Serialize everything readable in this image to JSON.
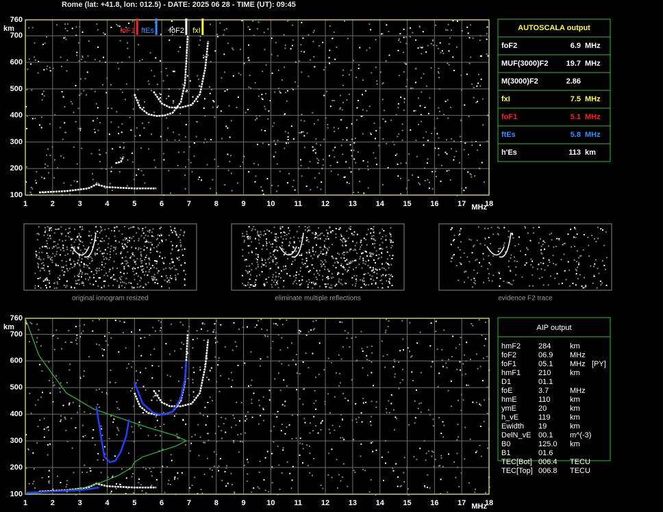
{
  "header": "Rome (lat: +41.8, lon: 012.5) - DATE: 2025 06 28 - TIME (UT): 09:45",
  "chart_data": [
    {
      "type": "line",
      "y_unit": "km",
      "x_unit": "MHz",
      "xlim": [
        1,
        18
      ],
      "ylim": [
        100,
        760
      ],
      "xticks": [
        1,
        2,
        3,
        4,
        5,
        6,
        7,
        8,
        9,
        10,
        11,
        12,
        13,
        14,
        15,
        16,
        17,
        18
      ],
      "yticks": [
        100,
        200,
        300,
        400,
        500,
        600,
        700,
        760
      ],
      "grid": true,
      "markers": [
        {
          "label": "foF1",
          "value": 5.1,
          "color": "#ff2020"
        },
        {
          "label": "ftEs",
          "value": 5.8,
          "color": "#3090ff"
        },
        {
          "label": "foF2",
          "value": 6.9,
          "color": "#ffffff"
        },
        {
          "label": "fxI",
          "value": 7.5,
          "color": "#ffff40"
        }
      ],
      "series": [
        {
          "color": "#ffffff",
          "x": [
            5.0,
            5.2,
            5.5,
            5.8,
            6.1,
            6.4,
            6.7,
            6.85,
            6.9,
            6.95
          ],
          "values": [
            480,
            430,
            405,
            398,
            400,
            410,
            450,
            520,
            600,
            700
          ]
        },
        {
          "color": "#ffffff",
          "x": [
            5.7,
            6.0,
            6.3,
            6.7,
            7.1,
            7.4,
            7.6,
            7.7
          ],
          "values": [
            490,
            445,
            430,
            430,
            440,
            480,
            580,
            680
          ]
        },
        {
          "color": "#ffffff",
          "x": [
            1.5,
            2.5,
            3.3,
            3.6,
            4.0,
            5.0,
            5.8
          ],
          "values": [
            110,
            115,
            125,
            140,
            130,
            125,
            125
          ]
        },
        {
          "color": "#ffffff",
          "x": [
            4.3,
            4.5,
            4.6
          ],
          "values": [
            220,
            225,
            245
          ]
        }
      ]
    },
    {
      "type": "line",
      "y_unit": "km",
      "x_unit": "MHz",
      "xlim": [
        1,
        18
      ],
      "ylim": [
        100,
        760
      ],
      "xticks": [
        1,
        2,
        3,
        4,
        5,
        6,
        7,
        8,
        9,
        10,
        11,
        12,
        13,
        14,
        15,
        16,
        17,
        18
      ],
      "yticks": [
        100,
        200,
        300,
        400,
        500,
        600,
        700,
        760
      ],
      "grid": true,
      "series": [
        {
          "color": "#ffffff",
          "x": [
            5.0,
            5.2,
            5.5,
            5.8,
            6.1,
            6.4,
            6.7,
            6.85,
            6.9,
            6.95
          ],
          "values": [
            480,
            430,
            405,
            398,
            400,
            410,
            450,
            520,
            600,
            700
          ]
        },
        {
          "color": "#ffffff",
          "x": [
            5.7,
            6.0,
            6.3,
            6.7,
            7.1,
            7.4,
            7.6,
            7.7
          ],
          "values": [
            490,
            445,
            430,
            430,
            440,
            480,
            580,
            680
          ]
        },
        {
          "color": "#ffffff",
          "x": [
            1.5,
            2.5,
            3.3,
            3.6,
            4.0,
            5.0,
            5.8
          ],
          "values": [
            110,
            115,
            125,
            140,
            130,
            125,
            125
          ]
        },
        {
          "color": "#30c030",
          "x": [
            1,
            1.5,
            2.5,
            3.5,
            4.5,
            5.5,
            6.5,
            6.9,
            6.5,
            5.3,
            5.0,
            4.9,
            4.4,
            3.8,
            3.0,
            1.5,
            1
          ],
          "values": [
            760,
            620,
            480,
            420,
            385,
            350,
            320,
            300,
            280,
            240,
            220,
            200,
            170,
            145,
            120,
            105,
            102
          ]
        },
        {
          "color": "#2040ff",
          "x": [
            3.6,
            3.8,
            3.9,
            4.1,
            4.3,
            4.5,
            4.7,
            4.8
          ],
          "values": [
            430,
            300,
            240,
            220,
            225,
            260,
            320,
            380
          ]
        },
        {
          "color": "#2040ff",
          "x": [
            5.0,
            5.3,
            5.7,
            6.0,
            6.4,
            6.7,
            6.85,
            6.9
          ],
          "values": [
            520,
            440,
            405,
            398,
            410,
            460,
            530,
            600
          ]
        },
        {
          "color": "#2040ff",
          "x": [
            1,
            3,
            3.7
          ],
          "values": [
            105,
            115,
            125
          ]
        }
      ]
    }
  ],
  "panels": [
    {
      "caption": "original ionogram resized"
    },
    {
      "caption": "eliminate multiple reflections"
    },
    {
      "caption": "evidence F2 trace"
    }
  ],
  "autoscala": {
    "title": "AUTOSCALA output",
    "rows": [
      {
        "label": "foF2",
        "value": "6.9",
        "unit": "MHz",
        "color": "#ffffff"
      },
      {
        "label": "MUF(3000)F2",
        "value": "19.7",
        "unit": "MHz",
        "color": "#ffffff"
      },
      {
        "label": "M(3000)F2",
        "value": "2.86",
        "color": "#ffffff"
      },
      {
        "label": "fxI",
        "value": "7.5",
        "unit": "MHz",
        "color": "#ffff40"
      },
      {
        "label": "foF1",
        "value": "5.1",
        "unit": "MHz",
        "color": "#ff2020"
      },
      {
        "label": "ftEs",
        "value": "5.8",
        "unit": "MHz",
        "color": "#3090ff"
      },
      {
        "label": "h'Es",
        "value": "113",
        "unit": "km",
        "color": "#ffffff"
      }
    ]
  },
  "aip": {
    "title": "AIP output",
    "rows": [
      [
        "hmF2",
        "284",
        "km"
      ],
      [
        "foF2",
        "06.9",
        "MHz"
      ],
      [
        "foF1",
        "05.1",
        "MHz",
        "[PY]"
      ],
      [
        "hmF1",
        "210",
        "km"
      ],
      [
        "D1",
        "01.1"
      ],
      [
        "foE",
        "3.7",
        "MHz"
      ],
      [
        "hmE",
        "110",
        "km"
      ],
      [
        "ymE",
        "20",
        "km"
      ],
      [
        "h_vE",
        "119",
        "km"
      ],
      [
        "Ewidth",
        "19",
        "km"
      ],
      [
        "DelN_vE",
        "00.1",
        "m^(-3)"
      ],
      [
        "B0",
        "125.0",
        "km"
      ],
      [
        "B1",
        "01.6"
      ],
      [
        "TEC[Bot]",
        "006.4",
        "TECU"
      ],
      [
        "TEC[Top]",
        "006.8",
        "TECU"
      ]
    ]
  }
}
